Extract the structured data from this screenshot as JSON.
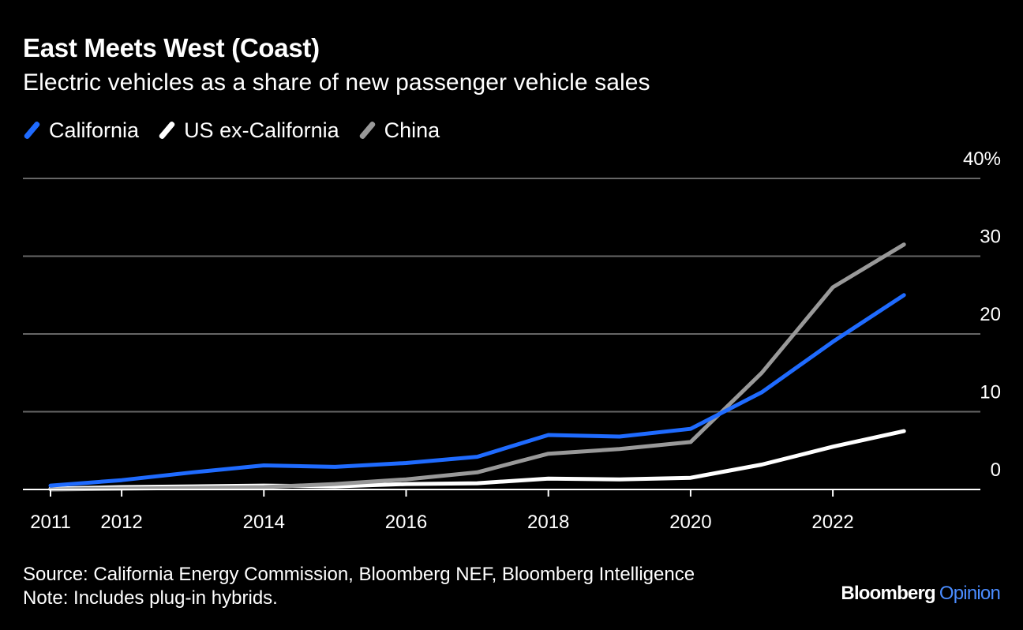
{
  "header": {
    "title": "East Meets West (Coast)",
    "subtitle": "Electric vehicles as a share of new passenger vehicle sales"
  },
  "legend": [
    {
      "label": "California",
      "color": "#1f6bff"
    },
    {
      "label": "US ex-California",
      "color": "#ffffff"
    },
    {
      "label": "China",
      "color": "#999999"
    }
  ],
  "chart_data": {
    "type": "line",
    "title": "East Meets West (Coast)",
    "subtitle": "Electric vehicles as a share of new passenger vehicle sales",
    "x": [
      2011,
      2012,
      2013,
      2014,
      2015,
      2016,
      2017,
      2018,
      2019,
      2020,
      2021,
      2022,
      2023
    ],
    "xlim": [
      2011,
      2024
    ],
    "ylim": [
      0,
      40
    ],
    "x_ticks": [
      2011,
      2012,
      2014,
      2016,
      2018,
      2020,
      2022
    ],
    "x_tick_labels": [
      "2011",
      "2012",
      "2014",
      "2016",
      "2018",
      "2020",
      "2022"
    ],
    "y_ticks": [
      0,
      10,
      20,
      30,
      40
    ],
    "y_tick_labels": [
      "0",
      "10",
      "20",
      "30",
      "40%"
    ],
    "grid": true,
    "legend_position": "top-left",
    "series": [
      {
        "name": "California",
        "color": "#1f6bff",
        "values": [
          0.5,
          1.2,
          2.2,
          3.1,
          2.9,
          3.4,
          4.2,
          7.0,
          6.8,
          7.8,
          12.5,
          19.0,
          25.0
        ]
      },
      {
        "name": "US ex-California",
        "color": "#ffffff",
        "values": [
          0.1,
          0.3,
          0.4,
          0.5,
          0.4,
          0.7,
          0.8,
          1.4,
          1.3,
          1.5,
          3.2,
          5.5,
          7.5
        ]
      },
      {
        "name": "China",
        "color": "#999999",
        "values": [
          0.0,
          0.1,
          0.2,
          0.3,
          0.7,
          1.3,
          2.2,
          4.6,
          5.2,
          6.1,
          15.0,
          26.0,
          31.5
        ]
      }
    ]
  },
  "footer": {
    "source": "Source: California Energy Commission, Bloomberg NEF, Bloomberg Intelligence",
    "note": "Note: Includes plug-in hybrids."
  },
  "brand": {
    "name": "Bloomberg",
    "section": "Opinion",
    "section_color": "#4a8cff"
  }
}
